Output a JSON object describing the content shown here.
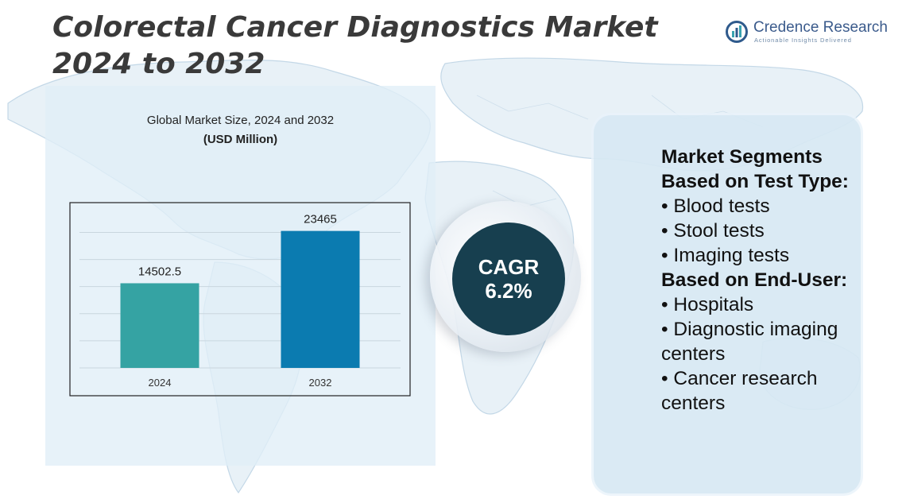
{
  "title": "Colorectal Cancer Diagnostics Market 2024 to 2032",
  "logo": {
    "name": "Credence Research",
    "tagline": "Actionable Insights Delivered"
  },
  "colors": {
    "bar_2024": "#35a3a3",
    "bar_2032": "#0b7bb0",
    "cagr_circle": "#173f4f",
    "title": "#3a3a3a"
  },
  "chart_data": {
    "type": "bar",
    "title": "Global Market Size, 2024 and 2032",
    "subtitle": "(USD Million)",
    "categories": [
      "2024",
      "2032"
    ],
    "values": [
      14502.5,
      23465
    ],
    "data_labels": [
      "14502.5",
      "23465"
    ],
    "xlabel": "",
    "ylabel": "",
    "ylim": [
      0,
      26000
    ],
    "grid": true,
    "legend": "none"
  },
  "cagr": {
    "label": "CAGR",
    "value": "6.2%"
  },
  "segments": {
    "heading_test": "Market Segments Based on Test Type:",
    "test_types": [
      "• Blood tests",
      "• Stool tests",
      "• Imaging tests"
    ],
    "heading_end_user": "Based on End-User:",
    "end_users": [
      "• Hospitals",
      "• Diagnostic imaging centers",
      "• Cancer research centers"
    ]
  }
}
